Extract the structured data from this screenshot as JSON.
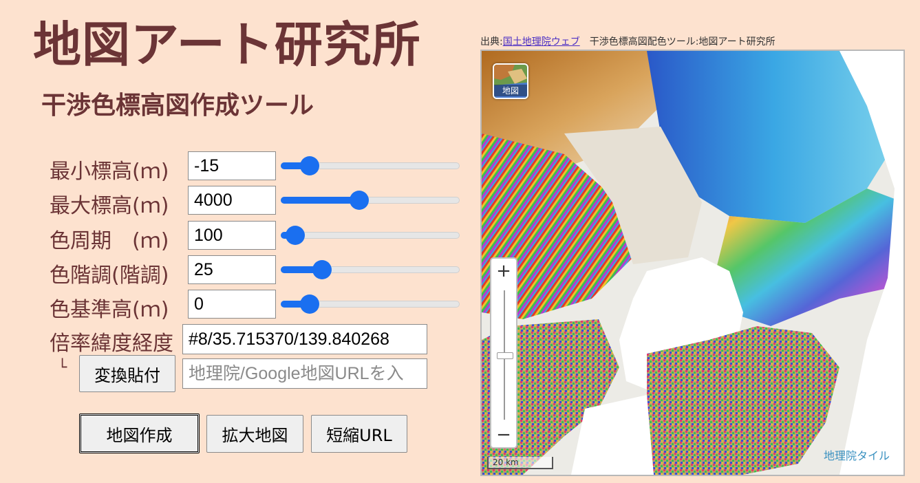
{
  "header": {
    "title": "地図アート研究所",
    "subtitle": "干渉色標高図作成ツール"
  },
  "controls": [
    {
      "label": "最小標高(ｍ)",
      "value": "-15",
      "slider_fraction": 0.16
    },
    {
      "label": "最大標高(ｍ)",
      "value": "4000",
      "slider_fraction": 0.44
    },
    {
      "label": "色周期　(ｍ)",
      "value": "100",
      "slider_fraction": 0.08
    },
    {
      "label": "色階調(階調)",
      "value": "25",
      "slider_fraction": 0.23
    },
    {
      "label": "色基準高(ｍ)",
      "value": "0",
      "slider_fraction": 0.16
    }
  ],
  "coords": {
    "label": "倍率緯度経度",
    "value": "#8/35.715370/139.840268"
  },
  "convert": {
    "corner": "└",
    "button": "変換貼付",
    "placeholder": "地理院/Google地図URLを入"
  },
  "buttons": {
    "make": "地図作成",
    "enlarge": "拡大地図",
    "short_url": "短縮URL"
  },
  "map": {
    "credit_prefix": "出典:",
    "credit_link": "国土地理院ウェブ",
    "credit_suffix": "　干渉色標高図配色ツール:地図アート研究所",
    "layer_label": "地図",
    "zoom_in": "+",
    "zoom_out": "−",
    "scale": "20 km",
    "attribution": "地理院タイル"
  },
  "colors": {
    "background": "#fde2cf",
    "title": "#6b3436",
    "slider": "#1a6ff0",
    "link": "#4b2fc4",
    "attribution": "#3a91c0"
  }
}
